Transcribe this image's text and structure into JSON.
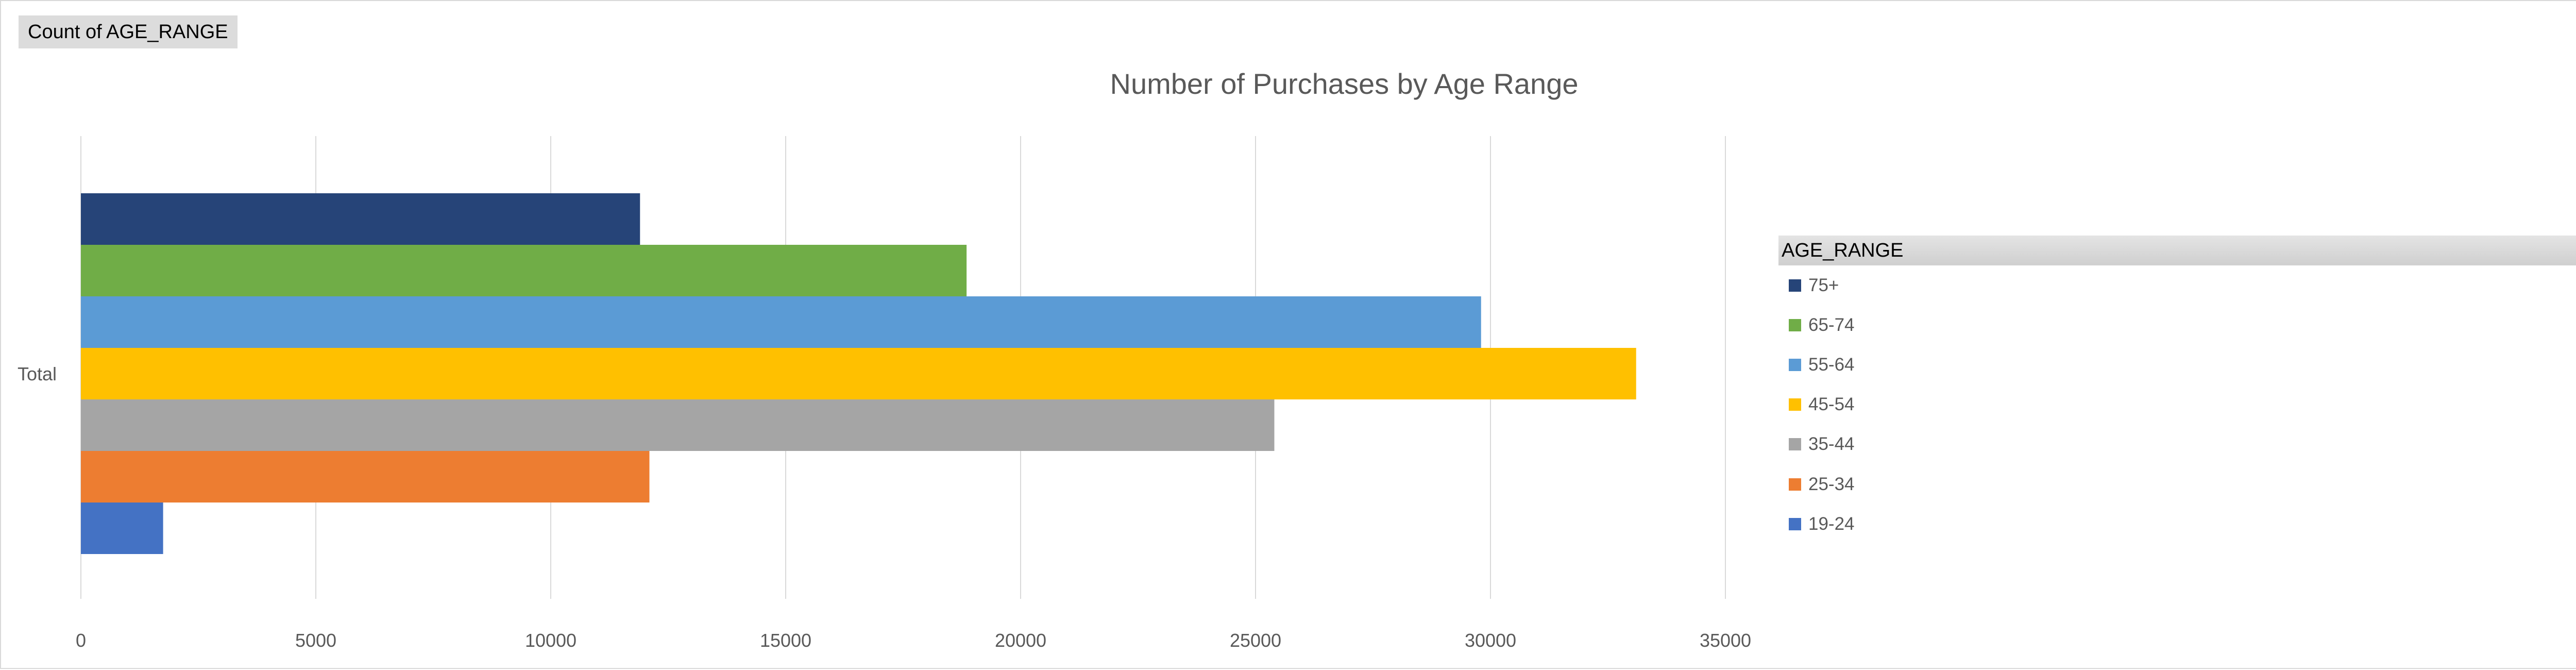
{
  "field_button": "Count of AGE_RANGE",
  "legend": {
    "title": "AGE_RANGE",
    "filter_icon": "funnel-filter-icon",
    "dot": "."
  },
  "chart_data": {
    "type": "bar",
    "orientation": "horizontal",
    "title": "Number of Purchases by Age Range",
    "categories": [
      "Total"
    ],
    "xlabel": "",
    "ylabel": "",
    "xlim": [
      0,
      35000
    ],
    "xticks": [
      0,
      5000,
      10000,
      15000,
      20000,
      25000,
      30000,
      35000
    ],
    "grid": true,
    "legend_position": "right",
    "series": [
      {
        "name": "75+",
        "values": [
          11900
        ],
        "color": "#264478"
      },
      {
        "name": "65-74",
        "values": [
          18850
        ],
        "color": "#70AD47"
      },
      {
        "name": "55-64",
        "values": [
          29800
        ],
        "color": "#5B9BD5"
      },
      {
        "name": "45-54",
        "values": [
          33100
        ],
        "color": "#FFC000"
      },
      {
        "name": "35-44",
        "values": [
          25400
        ],
        "color": "#A5A5A5"
      },
      {
        "name": "25-34",
        "values": [
          12100
        ],
        "color": "#ED7D31"
      },
      {
        "name": "19-24",
        "values": [
          1750
        ],
        "color": "#4472C4"
      }
    ]
  }
}
